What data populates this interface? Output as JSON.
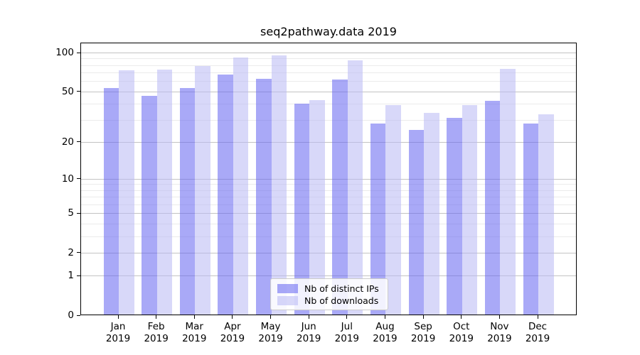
{
  "chart_data": {
    "type": "bar",
    "title": "seq2pathway.data 2019",
    "year": "2019",
    "categories": [
      "Jan",
      "Feb",
      "Mar",
      "Apr",
      "May",
      "Jun",
      "Jul",
      "Aug",
      "Sep",
      "Oct",
      "Nov",
      "Dec"
    ],
    "series": [
      {
        "name": "Nb of distinct IPs",
        "color": "rgba(99,99,240,0.55)",
        "solid_color": "#a9a9f7",
        "values": [
          53,
          46,
          53,
          68,
          63,
          40,
          62,
          28,
          25,
          31,
          42,
          28
        ]
      },
      {
        "name": "Nb of downloads",
        "color": "rgba(184,184,244,0.55)",
        "solid_color": "#d8d8f9",
        "values": [
          73,
          74,
          79,
          92,
          95,
          43,
          87,
          39,
          34,
          39,
          75,
          33
        ]
      }
    ],
    "y_scale": "log1p",
    "y_ticks": [
      100,
      50,
      20,
      10,
      5,
      2,
      1,
      0
    ],
    "y_minor_ticks": [
      3,
      4,
      6,
      7,
      8,
      9,
      30,
      40,
      60,
      70,
      80,
      90
    ],
    "ylim": [
      0,
      119
    ],
    "xlabel": "",
    "ylabel": "",
    "grid": "horizontal",
    "legend_position": "bottom-center"
  }
}
